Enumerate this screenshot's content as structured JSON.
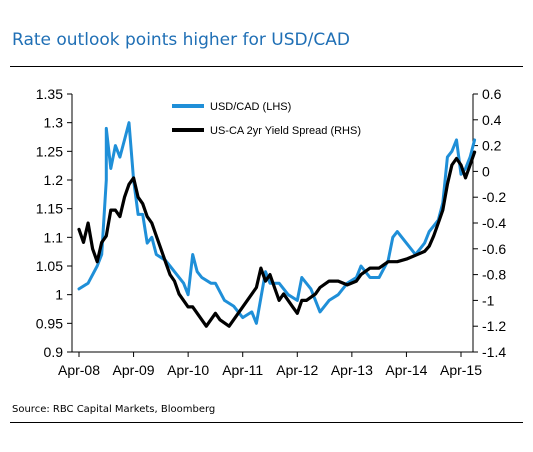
{
  "header": {
    "title": "Rate outlook points higher for USD/CAD"
  },
  "footer": {
    "source": "Source: RBC Capital Markets, Bloomberg"
  },
  "colors": {
    "usdcad": "#1f8fd8",
    "spread": "#000000",
    "title": "#1f6fb5"
  },
  "chart_data": {
    "type": "line",
    "title": "",
    "xlabel": "",
    "ylabel": "",
    "x_tick_labels": [
      "Apr-08",
      "Apr-09",
      "Apr-10",
      "Apr-11",
      "Apr-12",
      "Apr-13",
      "Apr-14",
      "Apr-15"
    ],
    "y_left": {
      "ticks": [
        "0.9",
        "0.95",
        "1",
        "1.05",
        "1.1",
        "1.15",
        "1.2",
        "1.25",
        "1.3",
        "1.35"
      ],
      "ylim": [
        0.9,
        1.35
      ]
    },
    "y_right": {
      "ticks": [
        "-1.4",
        "-1.2",
        "-1",
        "-0.8",
        "-0.6",
        "-0.4",
        "-0.2",
        "0",
        "0.2",
        "0.4",
        "0.6"
      ],
      "ylim": [
        -1.4,
        0.6
      ]
    },
    "legend_position": "top-center",
    "series": [
      {
        "name": "USD/CAD (LHS)",
        "axis": "left",
        "points": [
          [
            "Apr-08",
            1.01
          ],
          [
            "Jun-08",
            1.02
          ],
          [
            "Aug-08",
            1.05
          ],
          [
            "Sep-08",
            1.07
          ],
          [
            "Oct-08",
            1.2
          ],
          [
            "Oct-08",
            1.29
          ],
          [
            "Nov-08",
            1.22
          ],
          [
            "Dec-08",
            1.26
          ],
          [
            "Jan-09",
            1.24
          ],
          [
            "Feb-09",
            1.27
          ],
          [
            "Mar-09",
            1.3
          ],
          [
            "Apr-09",
            1.2
          ],
          [
            "May-09",
            1.14
          ],
          [
            "Jun-09",
            1.14
          ],
          [
            "Jul-09",
            1.09
          ],
          [
            "Aug-09",
            1.1
          ],
          [
            "Sep-09",
            1.07
          ],
          [
            "Nov-09",
            1.06
          ],
          [
            "Dec-09",
            1.05
          ],
          [
            "Jan-10",
            1.04
          ],
          [
            "Mar-10",
            1.02
          ],
          [
            "Apr-10",
            1.0
          ],
          [
            "May-10",
            1.07
          ],
          [
            "Jun-10",
            1.04
          ],
          [
            "Jul-10",
            1.03
          ],
          [
            "Sep-10",
            1.02
          ],
          [
            "Oct-10",
            1.02
          ],
          [
            "Dec-10",
            0.99
          ],
          [
            "Feb-11",
            0.98
          ],
          [
            "Apr-11",
            0.96
          ],
          [
            "Jun-11",
            0.97
          ],
          [
            "Jul-11",
            0.95
          ],
          [
            "Sep-11",
            1.04
          ],
          [
            "Oct-11",
            1.02
          ],
          [
            "Dec-11",
            1.02
          ],
          [
            "Feb-12",
            1.0
          ],
          [
            "Apr-12",
            0.99
          ],
          [
            "May-12",
            1.03
          ],
          [
            "Jul-12",
            1.01
          ],
          [
            "Sep-12",
            0.97
          ],
          [
            "Nov-12",
            0.99
          ],
          [
            "Jan-13",
            1.0
          ],
          [
            "Mar-13",
            1.02
          ],
          [
            "May-13",
            1.03
          ],
          [
            "Jun-13",
            1.05
          ],
          [
            "Aug-13",
            1.03
          ],
          [
            "Oct-13",
            1.03
          ],
          [
            "Dec-13",
            1.06
          ],
          [
            "Jan-14",
            1.1
          ],
          [
            "Feb-14",
            1.11
          ],
          [
            "Apr-14",
            1.09
          ],
          [
            "Jun-14",
            1.07
          ],
          [
            "Jul-14",
            1.08
          ],
          [
            "Aug-14",
            1.09
          ],
          [
            "Sep-14",
            1.11
          ],
          [
            "Oct-14",
            1.12
          ],
          [
            "Nov-14",
            1.13
          ],
          [
            "Dec-14",
            1.16
          ],
          [
            "Jan-15",
            1.24
          ],
          [
            "Feb-15",
            1.25
          ],
          [
            "Mar-15",
            1.27
          ],
          [
            "Apr-15",
            1.21
          ],
          [
            "May-15",
            1.22
          ],
          [
            "Jun-15",
            1.24
          ],
          [
            "Jul-15",
            1.27
          ]
        ]
      },
      {
        "name": "US-CA 2yr Yield Spread (RHS)",
        "axis": "right",
        "points": [
          [
            "Apr-08",
            -0.45
          ],
          [
            "May-08",
            -0.55
          ],
          [
            "Jun-08",
            -0.4
          ],
          [
            "Jul-08",
            -0.6
          ],
          [
            "Aug-08",
            -0.7
          ],
          [
            "Sep-08",
            -0.55
          ],
          [
            "Oct-08",
            -0.5
          ],
          [
            "Nov-08",
            -0.3
          ],
          [
            "Dec-08",
            -0.3
          ],
          [
            "Jan-09",
            -0.35
          ],
          [
            "Feb-09",
            -0.2
          ],
          [
            "Mar-09",
            -0.1
          ],
          [
            "Apr-09",
            -0.05
          ],
          [
            "May-09",
            -0.2
          ],
          [
            "Jun-09",
            -0.25
          ],
          [
            "Jul-09",
            -0.35
          ],
          [
            "Aug-09",
            -0.4
          ],
          [
            "Sep-09",
            -0.5
          ],
          [
            "Oct-09",
            -0.6
          ],
          [
            "Nov-09",
            -0.7
          ],
          [
            "Dec-09",
            -0.8
          ],
          [
            "Jan-10",
            -0.85
          ],
          [
            "Feb-10",
            -0.95
          ],
          [
            "Apr-10",
            -1.05
          ],
          [
            "May-10",
            -1.05
          ],
          [
            "Jul-10",
            -1.15
          ],
          [
            "Aug-10",
            -1.2
          ],
          [
            "Oct-10",
            -1.1
          ],
          [
            "Nov-10",
            -1.15
          ],
          [
            "Jan-11",
            -1.2
          ],
          [
            "Mar-11",
            -1.1
          ],
          [
            "May-11",
            -1.0
          ],
          [
            "Jul-11",
            -0.9
          ],
          [
            "Aug-11",
            -0.75
          ],
          [
            "Sep-11",
            -0.85
          ],
          [
            "Oct-11",
            -0.8
          ],
          [
            "Nov-11",
            -0.9
          ],
          [
            "Dec-11",
            -1.0
          ],
          [
            "Jan-12",
            -0.95
          ],
          [
            "Mar-12",
            -1.05
          ],
          [
            "Apr-12",
            -1.1
          ],
          [
            "May-12",
            -1.0
          ],
          [
            "Jun-12",
            -1.0
          ],
          [
            "Aug-12",
            -0.95
          ],
          [
            "Sep-12",
            -0.9
          ],
          [
            "Nov-12",
            -0.85
          ],
          [
            "Jan-13",
            -0.85
          ],
          [
            "Mar-13",
            -0.88
          ],
          [
            "May-13",
            -0.85
          ],
          [
            "Jun-13",
            -0.8
          ],
          [
            "Aug-13",
            -0.75
          ],
          [
            "Oct-13",
            -0.75
          ],
          [
            "Dec-13",
            -0.7
          ],
          [
            "Feb-14",
            -0.7
          ],
          [
            "Apr-14",
            -0.68
          ],
          [
            "Jun-14",
            -0.65
          ],
          [
            "Aug-14",
            -0.62
          ],
          [
            "Sep-14",
            -0.58
          ],
          [
            "Oct-14",
            -0.5
          ],
          [
            "Nov-14",
            -0.4
          ],
          [
            "Dec-14",
            -0.3
          ],
          [
            "Jan-15",
            -0.1
          ],
          [
            "Feb-15",
            0.05
          ],
          [
            "Mar-15",
            0.1
          ],
          [
            "Apr-15",
            0.05
          ],
          [
            "May-15",
            -0.05
          ],
          [
            "Jun-15",
            0.05
          ],
          [
            "Jul-15",
            0.15
          ]
        ]
      }
    ]
  }
}
